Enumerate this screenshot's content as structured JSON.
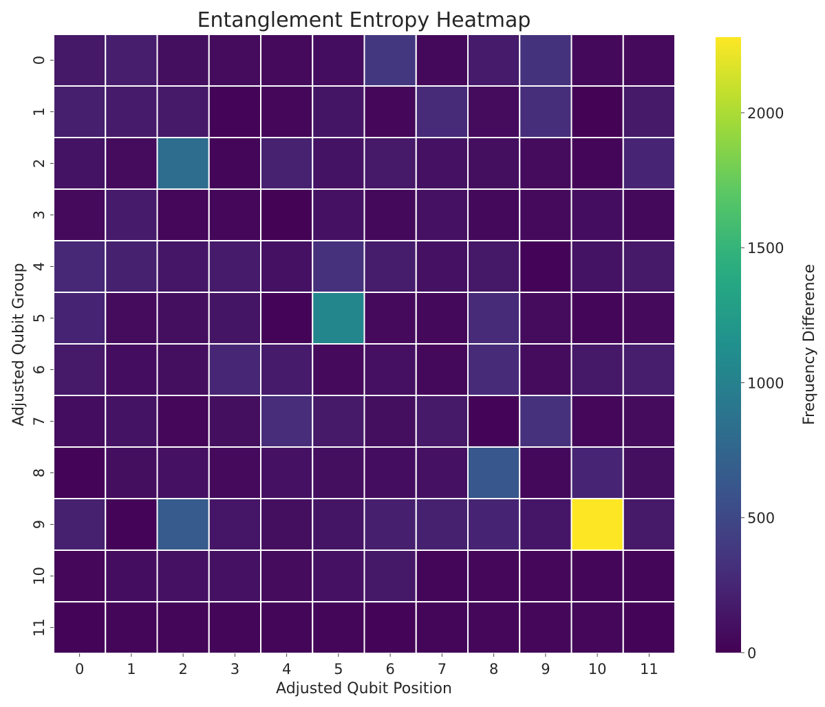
{
  "chart_data": {
    "type": "heatmap",
    "title": "Entanglement Entropy Heatmap",
    "xlabel": "Adjusted Qubit Position",
    "ylabel": "Adjusted Qubit Group",
    "x_categories": [
      "0",
      "1",
      "2",
      "3",
      "4",
      "5",
      "6",
      "7",
      "8",
      "9",
      "10",
      "11"
    ],
    "y_categories": [
      "0",
      "1",
      "2",
      "3",
      "4",
      "5",
      "6",
      "7",
      "8",
      "9",
      "10",
      "11"
    ],
    "values": [
      [
        150,
        190,
        90,
        70,
        60,
        80,
        380,
        50,
        170,
        330,
        50,
        60
      ],
      [
        200,
        170,
        160,
        20,
        40,
        130,
        40,
        280,
        70,
        300,
        10,
        160
      ],
      [
        120,
        70,
        820,
        30,
        220,
        120,
        160,
        110,
        90,
        70,
        30,
        240
      ],
      [
        60,
        170,
        40,
        40,
        10,
        110,
        50,
        110,
        50,
        60,
        80,
        50
      ],
      [
        260,
        210,
        140,
        170,
        110,
        320,
        180,
        110,
        150,
        20,
        120,
        160
      ],
      [
        230,
        70,
        90,
        130,
        20,
        1050,
        60,
        50,
        270,
        70,
        30,
        60
      ],
      [
        160,
        80,
        90,
        250,
        170,
        60,
        100,
        50,
        280,
        70,
        150,
        190
      ],
      [
        80,
        120,
        40,
        90,
        290,
        160,
        90,
        160,
        20,
        320,
        40,
        70
      ],
      [
        20,
        90,
        110,
        60,
        110,
        90,
        80,
        110,
        620,
        50,
        240,
        90
      ],
      [
        210,
        20,
        660,
        140,
        90,
        130,
        200,
        210,
        230,
        140,
        2280,
        160
      ],
      [
        40,
        80,
        110,
        110,
        70,
        110,
        150,
        30,
        40,
        40,
        30,
        30
      ],
      [
        20,
        30,
        30,
        30,
        30,
        30,
        20,
        30,
        40,
        40,
        40,
        20
      ]
    ],
    "colorbar": {
      "label": "Frequency Difference",
      "range": [
        0,
        2280
      ],
      "ticks": [
        0,
        500,
        1000,
        1500,
        2000
      ],
      "tick_labels": [
        "0",
        "500",
        "1000",
        "1500",
        "2000"
      ],
      "colormap": "viridis"
    },
    "grid": true
  }
}
